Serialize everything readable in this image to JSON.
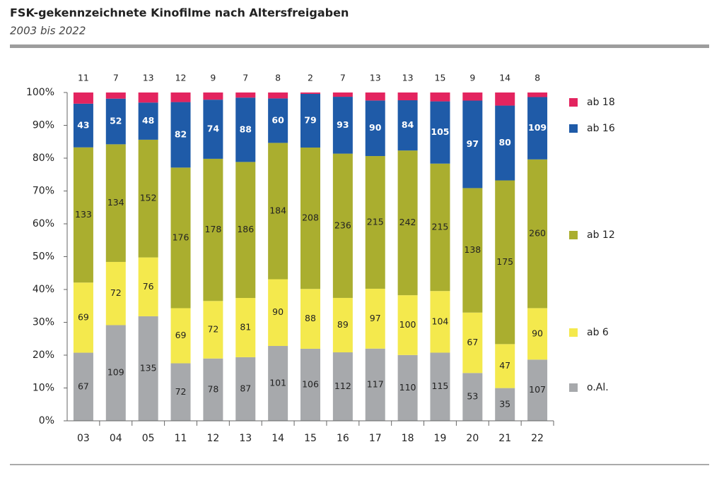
{
  "chart_data": {
    "type": "bar",
    "stacking": "percent",
    "title": "FSK-gekennzeichnete Kinofilme nach Altersfreigaben",
    "subtitle": "2003 bis 2022",
    "categories": [
      "03",
      "04",
      "05",
      "11",
      "12",
      "13",
      "14",
      "15",
      "16",
      "17",
      "18",
      "19",
      "20",
      "21",
      "22"
    ],
    "series": [
      {
        "name": "o.Al.",
        "color": "#a7a9ac",
        "values": [
          67,
          109,
          135,
          72,
          78,
          87,
          101,
          106,
          112,
          117,
          110,
          115,
          53,
          35,
          107
        ]
      },
      {
        "name": "ab 6",
        "color": "#f4e94d",
        "values": [
          69,
          72,
          76,
          69,
          72,
          81,
          90,
          88,
          89,
          97,
          100,
          104,
          67,
          47,
          90
        ]
      },
      {
        "name": "ab 12",
        "color": "#aaae2f",
        "values": [
          133,
          134,
          152,
          176,
          178,
          186,
          184,
          208,
          236,
          215,
          242,
          215,
          138,
          175,
          260
        ]
      },
      {
        "name": "ab 16",
        "color": "#1f5ba8",
        "values": [
          43,
          52,
          48,
          82,
          74,
          88,
          60,
          79,
          93,
          90,
          84,
          105,
          97,
          80,
          109
        ]
      },
      {
        "name": "ab 18",
        "color": "#e3245f",
        "values": [
          11,
          7,
          13,
          12,
          9,
          7,
          8,
          2,
          7,
          13,
          13,
          15,
          9,
          14,
          8
        ]
      }
    ],
    "ylim": [
      0,
      100
    ],
    "yticks": [
      {
        "value": 0,
        "label": "0%"
      },
      {
        "value": 10,
        "label": "10%"
      },
      {
        "value": 20,
        "label": "20%"
      },
      {
        "value": 30,
        "label": "30%"
      },
      {
        "value": 40,
        "label": "40%"
      },
      {
        "value": 50,
        "label": "50%"
      },
      {
        "value": 60,
        "label": "60%"
      },
      {
        "value": 70,
        "label": "70%"
      },
      {
        "value": 80,
        "label": "80%"
      },
      {
        "value": 90,
        "label": "90%"
      },
      {
        "value": 100,
        "label": "100%"
      }
    ],
    "grid": false,
    "legend": "right"
  }
}
